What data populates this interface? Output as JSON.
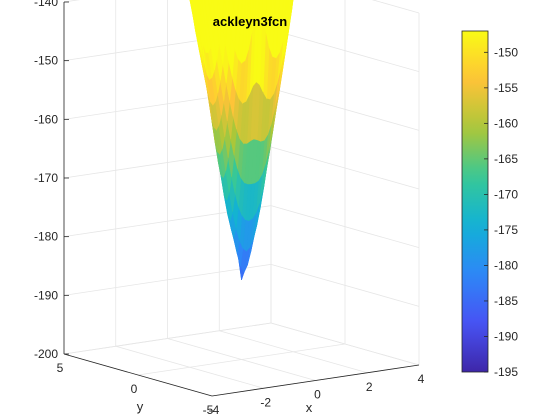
{
  "chart_data": {
    "type": "surface3d",
    "title": "ackleyn3fcn",
    "xlabel": "x",
    "ylabel": "y",
    "zlabel": "",
    "xlim": [
      -4,
      4
    ],
    "ylim": [
      -5,
      5
    ],
    "zlim": [
      -200,
      -140
    ],
    "x_ticks": [
      "-4",
      "-2",
      "0",
      "2",
      "4"
    ],
    "y_ticks": [
      "5",
      "0",
      "-5"
    ],
    "z_ticks": [
      "-140",
      "-150",
      "-160",
      "-170",
      "-180",
      "-190",
      "-200"
    ],
    "colorbar": {
      "colormap": "parula",
      "range": [
        -195,
        -147
      ],
      "ticks": [
        "-150",
        "-155",
        "-160",
        "-165",
        "-170",
        "-175",
        "-180",
        "-185",
        "-190",
        "-195"
      ]
    },
    "grid": true,
    "surface": {
      "function": "ackleyn3",
      "approx_z_min": -195.6,
      "approx_z_max": -147.2
    }
  }
}
